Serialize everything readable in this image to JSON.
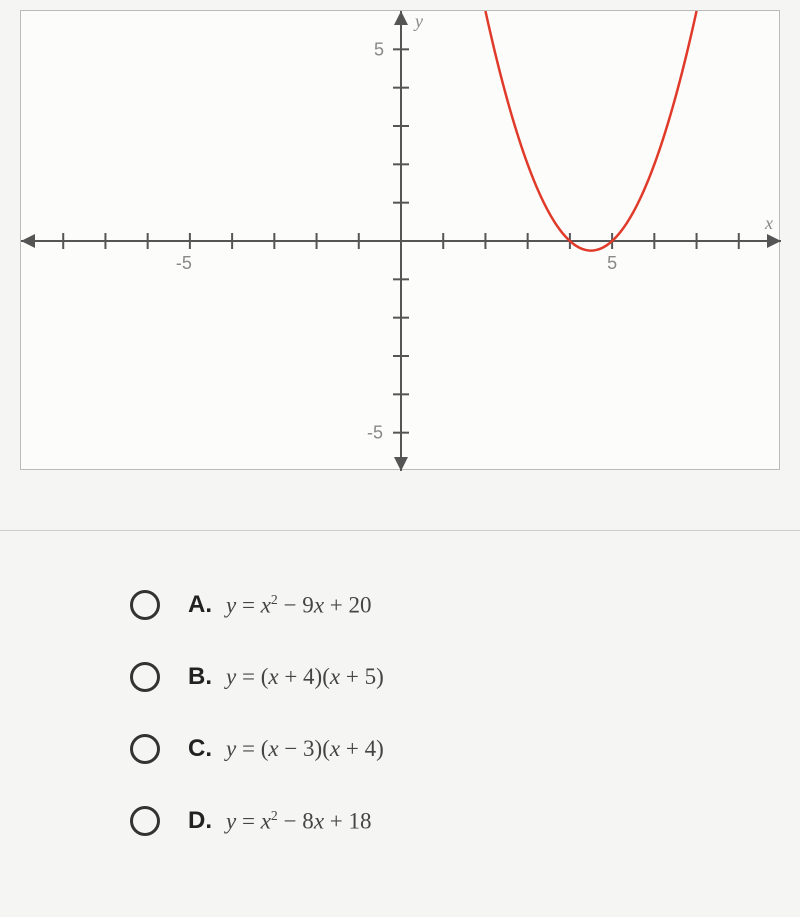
{
  "chart": {
    "type": "line",
    "background_color": "#fcfcfa",
    "border_color": "#bbbbbb",
    "axis_color": "#555555",
    "tick_color": "#555555",
    "curve_color": "#e03a2a",
    "curve_width": 2.5,
    "xlim": [
      -9,
      9
    ],
    "ylim": [
      -6,
      6
    ],
    "xtick_step": 1,
    "ytick_step": 1,
    "x_label": "x",
    "y_label": "y",
    "x_axis_label_visible": "-5",
    "x_axis_label_visible2": "5",
    "y_axis_label_visible": "5",
    "y_axis_label_visible2": "-5",
    "function": "y = x^2 - 9x + 20",
    "roots": [
      4,
      5
    ],
    "vertex": [
      4.5,
      -0.25
    ],
    "label_fontsize": 18,
    "label_color": "#888888"
  },
  "options": {
    "A": {
      "letter": "A.",
      "equation_html": "<i>y</i> <span class='n'>=</span> <i>x</i><sup>2</sup> <span class='n'>− 9</span><i>x</i> <span class='n'>+ 20</span>"
    },
    "B": {
      "letter": "B.",
      "equation_html": "<i>y</i> <span class='n'>= (</span><i>x</i> <span class='n'>+ 4)(</span><i>x</i> <span class='n'>+ 5)</span>"
    },
    "C": {
      "letter": "C.",
      "equation_html": "<i>y</i> <span class='n'>= (</span><i>x</i> <span class='n'>− 3)(</span><i>x</i> <span class='n'>+ 4)</span>"
    },
    "D": {
      "letter": "D.",
      "equation_html": "<i>y</i> <span class='n'>=</span> <i>x</i><sup>2</sup> <span class='n'>− 8</span><i>x</i> <span class='n'>+ 18</span>"
    }
  }
}
